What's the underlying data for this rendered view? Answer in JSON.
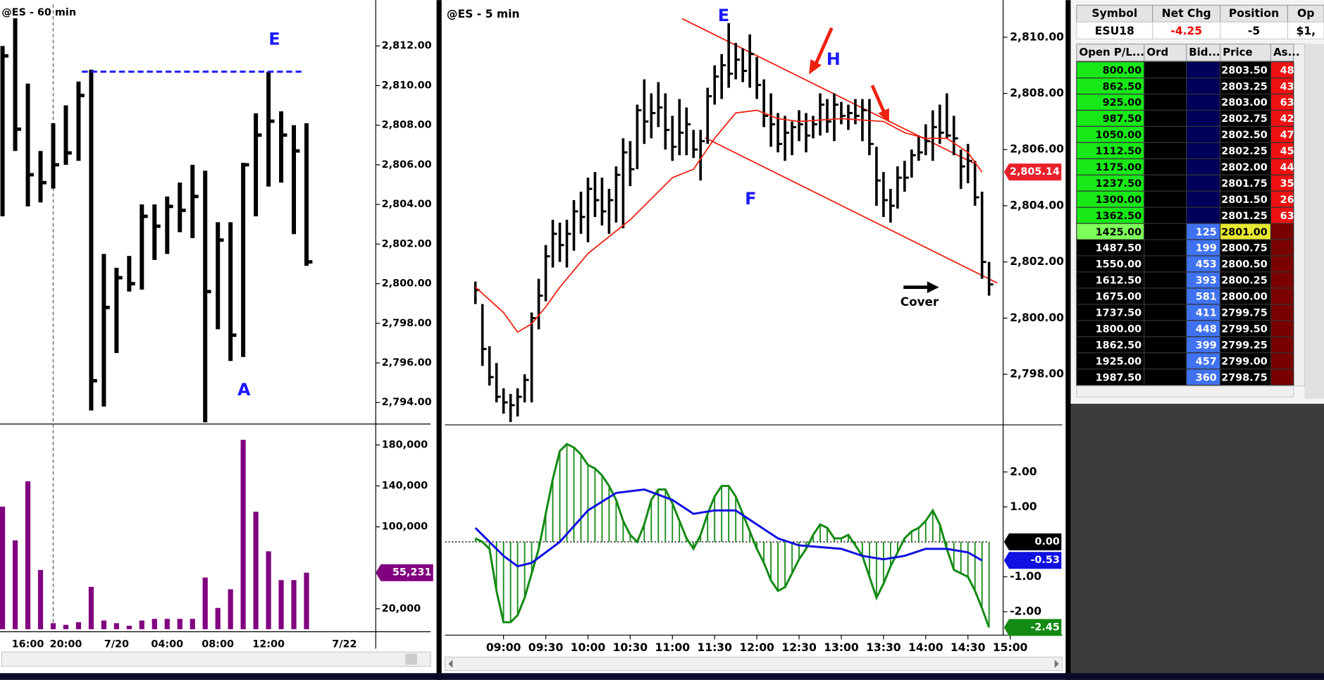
{
  "left_chart": {
    "title": "@ES - 60 min",
    "categories": [
      null,
      null,
      "16:00",
      null,
      null,
      "20:00",
      null,
      null,
      null,
      "7/20",
      null,
      null,
      null,
      "04:00",
      null,
      null,
      null,
      "08:00",
      null,
      null,
      null,
      "12:00",
      null,
      null,
      null,
      null,
      null,
      "7/22"
    ],
    "high": [
      2812.0,
      2813.4,
      2810.1,
      2806.7,
      2808.1,
      2809.0,
      2810.2,
      2810.8,
      2801.5,
      2800.8,
      2801.4,
      2804.0,
      2804.0,
      2804.4,
      2805.1,
      2806.0,
      2805.7,
      2803.1,
      2803.1,
      2806.1,
      2808.6,
      2810.7,
      2808.7,
      2808.0,
      2808.1,
      null,
      null,
      null
    ],
    "low": [
      2803.4,
      2806.7,
      2803.9,
      2804.1,
      2804.8,
      2806.0,
      2806.2,
      2793.6,
      2793.8,
      2796.5,
      2799.6,
      2799.7,
      2801.2,
      2801.5,
      2802.6,
      2802.3,
      2793.0,
      2797.7,
      2796.1,
      2796.3,
      2803.4,
      2804.9,
      2805.1,
      2802.5,
      2800.9,
      null,
      null,
      null
    ],
    "close": [
      2811.5,
      2807.8,
      2805.5,
      2805.1,
      2806.0,
      2806.6,
      2809.5,
      2795.1,
      2798.8,
      2800.3,
      2800.0,
      2803.4,
      2802.9,
      2803.9,
      2803.7,
      2804.4,
      2799.6,
      2802.2,
      2797.4,
      2806.0,
      2807.5,
      2808.2,
      2807.5,
      2806.7,
      2801.1,
      null,
      null,
      null
    ],
    "volume": [
      119800,
      86800,
      144500,
      57900,
      5900,
      4300,
      6800,
      41400,
      8500,
      5900,
      3400,
      8500,
      10100,
      10100,
      10100,
      10100,
      50500,
      20800,
      39000,
      185000,
      114800,
      76100,
      48000,
      48000,
      55231,
      null,
      null,
      null
    ],
    "last_volume_label": "55,231",
    "level_line": 2810.7,
    "ylim": [
      2793.0,
      2814.1
    ],
    "yticks": [
      {
        "value": 2794,
        "label": "2,794.00"
      },
      {
        "value": 2796,
        "label": "2,796.00"
      },
      {
        "value": 2798,
        "label": "2,798.00"
      },
      {
        "value": 2800,
        "label": "2,800.00"
      },
      {
        "value": 2802,
        "label": "2,802.00"
      },
      {
        "value": 2804,
        "label": "2,804.00"
      },
      {
        "value": 2806,
        "label": "2,806.00"
      },
      {
        "value": 2808,
        "label": "2,808.00"
      },
      {
        "value": 2810,
        "label": "2,810.00"
      },
      {
        "value": 2812,
        "label": "2,812.00"
      }
    ],
    "volume_ylim": [
      0,
      198000
    ],
    "volume_yticks": [
      {
        "value": 20000,
        "label": "20,000"
      },
      {
        "value": 100000,
        "label": "100,000"
      },
      {
        "value": 140000,
        "label": "140,000"
      },
      {
        "value": 180000,
        "label": "180,000"
      }
    ],
    "labels": [
      "E",
      "A"
    ]
  },
  "main_chart": {
    "title": "@ES - 5 min",
    "x": [
      520,
      525,
      530,
      535,
      540,
      545,
      550,
      555,
      560,
      565,
      570,
      575,
      580,
      585,
      590,
      595,
      600,
      605,
      610,
      615,
      620,
      625,
      630,
      635,
      640,
      645,
      650,
      655,
      660,
      665,
      670,
      675,
      680,
      685,
      690,
      695,
      700,
      705,
      710,
      715,
      720,
      725,
      730,
      735,
      740,
      745,
      750,
      755,
      760,
      765,
      770,
      775,
      780,
      785,
      790,
      795,
      800,
      805,
      810,
      815,
      820,
      825,
      830,
      835,
      840,
      845,
      850,
      855,
      860,
      865,
      870,
      875,
      880,
      885
    ],
    "high": [
      2801.3,
      2800.5,
      2799.0,
      2798.4,
      2797.5,
      2797.3,
      2797.5,
      2798.0,
      2800.2,
      2801.4,
      2802.6,
      2803.5,
      2803.4,
      2803.5,
      2804.2,
      2804.5,
      2805.0,
      2805.2,
      2805.0,
      2804.6,
      2805.4,
      2806.4,
      2806.3,
      2807.6,
      2808.5,
      2808.0,
      2808.4,
      2808.0,
      2807.2,
      2807.8,
      2807.5,
      2806.7,
      2806.7,
      2808.2,
      2809.0,
      2809.4,
      2810.5,
      2809.8,
      2809.6,
      2810.1,
      2809.3,
      2808.5,
      2808.0,
      2807.3,
      2807.2,
      2807.0,
      2807.4,
      2807.3,
      2807.2,
      2808.0,
      2807.8,
      2808.0,
      2807.7,
      2807.6,
      2807.8,
      2807.8,
      2807.8,
      2806.1,
      2805.2,
      2804.6,
      2805.4,
      2805.6,
      2806.0,
      2806.5,
      2806.9,
      2807.4,
      2807.6,
      2808.0,
      2807.2,
      2806.0,
      2806.2,
      2805.6,
      2804.5,
      2802.0
    ],
    "low": [
      2800.5,
      2798.3,
      2797.6,
      2797.0,
      2796.6,
      2796.3,
      2796.5,
      2797.0,
      2797.0,
      2799.6,
      2800.6,
      2801.8,
      2802.0,
      2801.8,
      2802.4,
      2803.0,
      2802.7,
      2803.6,
      2803.3,
      2803.0,
      2803.4,
      2803.2,
      2804.7,
      2805.3,
      2806.2,
      2806.4,
      2806.8,
      2806.0,
      2805.6,
      2805.8,
      2805.8,
      2805.7,
      2804.9,
      2806.2,
      2807.6,
      2807.8,
      2808.2,
      2808.5,
      2808.4,
      2808.2,
      2807.8,
      2806.8,
      2806.1,
      2805.9,
      2805.6,
      2805.8,
      2806.3,
      2805.9,
      2806.4,
      2806.5,
      2806.6,
      2806.3,
      2806.9,
      2806.7,
      2806.9,
      2806.3,
      2805.8,
      2804.0,
      2803.6,
      2803.4,
      2803.9,
      2804.5,
      2805.0,
      2805.6,
      2805.8,
      2805.6,
      2806.2,
      2806.4,
      2805.8,
      2804.6,
      2804.8,
      2804.0,
      2801.4,
      2800.8
    ],
    "close": [
      2801.0,
      2798.9,
      2797.9,
      2797.2,
      2797.0,
      2796.9,
      2797.2,
      2797.8,
      2800.0,
      2800.8,
      2802.2,
      2803.0,
      2802.6,
      2803.0,
      2803.8,
      2803.6,
      2804.6,
      2804.2,
      2803.8,
      2804.2,
      2805.1,
      2805.9,
      2805.3,
      2807.4,
      2807.0,
      2807.3,
      2807.5,
      2806.7,
      2806.1,
      2806.6,
      2806.9,
      2806.0,
      2806.3,
      2807.9,
      2808.6,
      2809.0,
      2808.7,
      2809.2,
      2808.8,
      2809.4,
      2808.3,
      2807.2,
      2806.9,
      2806.2,
      2806.6,
      2806.8,
      2806.9,
      2806.5,
      2806.9,
      2807.6,
      2807.0,
      2807.6,
      2807.2,
      2807.3,
      2807.2,
      2807.4,
      2806.2,
      2804.9,
      2804.2,
      2804.0,
      2805.0,
      2805.0,
      2805.8,
      2805.9,
      2806.3,
      2806.8,
      2806.6,
      2806.5,
      2806.4,
      2805.4,
      2805.6,
      2804.3,
      2802.0,
      2801.2
    ],
    "ma_x": [
      520,
      540,
      550,
      560,
      570,
      580,
      600,
      630,
      660,
      675,
      690,
      705,
      720,
      735,
      750,
      780,
      810,
      825,
      840,
      855,
      870,
      880
    ],
    "ma": [
      2801.1,
      2800.2,
      2799.5,
      2799.8,
      2800.4,
      2801.1,
      2802.3,
      2803.5,
      2805.0,
      2805.3,
      2806.4,
      2807.3,
      2807.4,
      2807.1,
      2807.0,
      2807.1,
      2807.0,
      2806.6,
      2806.4,
      2806.4,
      2805.9,
      2805.2
    ],
    "last_price_label": "2,805.14",
    "ylim": [
      2796.29,
      2811.17
    ],
    "yticks": [
      {
        "value": 2798,
        "label": "2,798.00"
      },
      {
        "value": 2800,
        "label": "2,800.00"
      },
      {
        "value": 2802,
        "label": "2,802.00"
      },
      {
        "value": 2804,
        "label": "2,804.00"
      },
      {
        "value": 2806,
        "label": "2,806.00"
      },
      {
        "value": 2808,
        "label": "2,808.00"
      },
      {
        "value": 2810,
        "label": "2,810.00"
      }
    ],
    "xlim": [
      498.4,
      891.4
    ],
    "xticks": [
      {
        "value": 540,
        "label": "09:00"
      },
      {
        "value": 570,
        "label": "09:30"
      },
      {
        "value": 600,
        "label": "10:00"
      },
      {
        "value": 630,
        "label": "10:30"
      },
      {
        "value": 660,
        "label": "11:00"
      },
      {
        "value": 690,
        "label": "11:30"
      },
      {
        "value": 720,
        "label": "12:00"
      },
      {
        "value": 750,
        "label": "12:30"
      },
      {
        "value": 780,
        "label": "13:00"
      },
      {
        "value": 810,
        "label": "13:30"
      },
      {
        "value": 840,
        "label": "14:00"
      },
      {
        "value": 870,
        "label": "14:30"
      },
      {
        "value": 900,
        "label": "15:00"
      }
    ],
    "oscillator": [
      0.1,
      0.0,
      -0.2,
      -1.4,
      -2.3,
      -2.3,
      -2.1,
      -1.6,
      -0.9,
      -0.2,
      0.8,
      1.8,
      2.6,
      2.8,
      2.7,
      2.5,
      2.2,
      2.1,
      1.9,
      1.6,
      1.2,
      0.6,
      0.2,
      0.0,
      0.5,
      1.2,
      1.5,
      1.5,
      1.1,
      0.6,
      0.1,
      -0.2,
      0.2,
      0.8,
      1.3,
      1.6,
      1.6,
      1.3,
      0.8,
      0.3,
      -0.2,
      -0.6,
      -1.1,
      -1.4,
      -1.3,
      -0.9,
      -0.5,
      -0.2,
      0.2,
      0.5,
      0.4,
      0.1,
      0.1,
      0.2,
      -0.1,
      -0.4,
      -1.0,
      -1.6,
      -1.2,
      -0.7,
      -0.3,
      0.1,
      0.3,
      0.4,
      0.6,
      0.9,
      0.5,
      -0.2,
      -0.8,
      -0.9,
      -1.0,
      -1.4,
      -1.9,
      -2.45
    ],
    "oscillator_label": "-2.45",
    "signal_x": [
      520,
      540,
      550,
      560,
      580,
      600,
      620,
      640,
      660,
      675,
      690,
      705,
      720,
      735,
      750,
      780,
      795,
      810,
      825,
      840,
      855,
      870,
      880
    ],
    "signal": [
      0.4,
      -0.4,
      -0.7,
      -0.6,
      0.0,
      0.9,
      1.4,
      1.5,
      1.2,
      0.8,
      0.9,
      0.9,
      0.5,
      0.1,
      -0.1,
      -0.2,
      -0.4,
      -0.5,
      -0.4,
      -0.2,
      -0.2,
      -0.3,
      -0.53
    ],
    "signal_label": "-0.53",
    "zero_line": {
      "value": 0,
      "label": "0.00"
    },
    "osc_ylim": [
      -2.5,
      3.3
    ],
    "osc_yticks": [
      {
        "value": -2,
        "label": "-2.00"
      },
      {
        "value": -1,
        "label": "-1.00"
      },
      {
        "value": 1,
        "label": "1.00"
      },
      {
        "value": 2,
        "label": "2.00"
      }
    ],
    "labels": {
      "e": "E",
      "h": "H",
      "f": "F",
      "cover": "Cover"
    }
  },
  "dom": {
    "header": [
      "Symbol",
      "Net Chg",
      "Position",
      "Op"
    ],
    "quote": [
      "ESU18",
      "-4.25",
      "-5",
      "$1,"
    ],
    "columns": [
      "Open P/L...",
      "Ord",
      "Bid...",
      "Price",
      "As..."
    ],
    "rows": [
      {
        "pl": "800.00",
        "price": "2803.50",
        "ask": "48"
      },
      {
        "pl": "862.50",
        "price": "2803.25",
        "ask": "43"
      },
      {
        "pl": "925.00",
        "price": "2803.00",
        "ask": "63"
      },
      {
        "pl": "987.50",
        "price": "2802.75",
        "ask": "42"
      },
      {
        "pl": "1050.00",
        "price": "2802.50",
        "ask": "47"
      },
      {
        "pl": "1112.50",
        "price": "2802.25",
        "ask": "45"
      },
      {
        "pl": "1175.00",
        "price": "2802.00",
        "ask": "44"
      },
      {
        "pl": "1237.50",
        "price": "2801.75",
        "ask": "35"
      },
      {
        "pl": "1300.00",
        "price": "2801.50",
        "ask": "26"
      },
      {
        "pl": "1362.50",
        "price": "2801.25",
        "ask": "63"
      },
      {
        "pl": "1425.00",
        "bid": "125",
        "price": "2801.00"
      },
      {
        "pl": "1487.50",
        "bid": "199",
        "price": "2800.75"
      },
      {
        "pl": "1550.00",
        "bid": "453",
        "price": "2800.50"
      },
      {
        "pl": "1612.50",
        "bid": "393",
        "price": "2800.25"
      },
      {
        "pl": "1675.00",
        "bid": "581",
        "price": "2800.00"
      },
      {
        "pl": "1737.50",
        "bid": "411",
        "price": "2799.75"
      },
      {
        "pl": "1800.00",
        "bid": "448",
        "price": "2799.50"
      },
      {
        "pl": "1862.50",
        "bid": "399",
        "price": "2799.25"
      },
      {
        "pl": "1925.00",
        "bid": "457",
        "price": "2799.00"
      },
      {
        "pl": "1987.50",
        "bid": "360",
        "price": "2798.75"
      }
    ]
  }
}
